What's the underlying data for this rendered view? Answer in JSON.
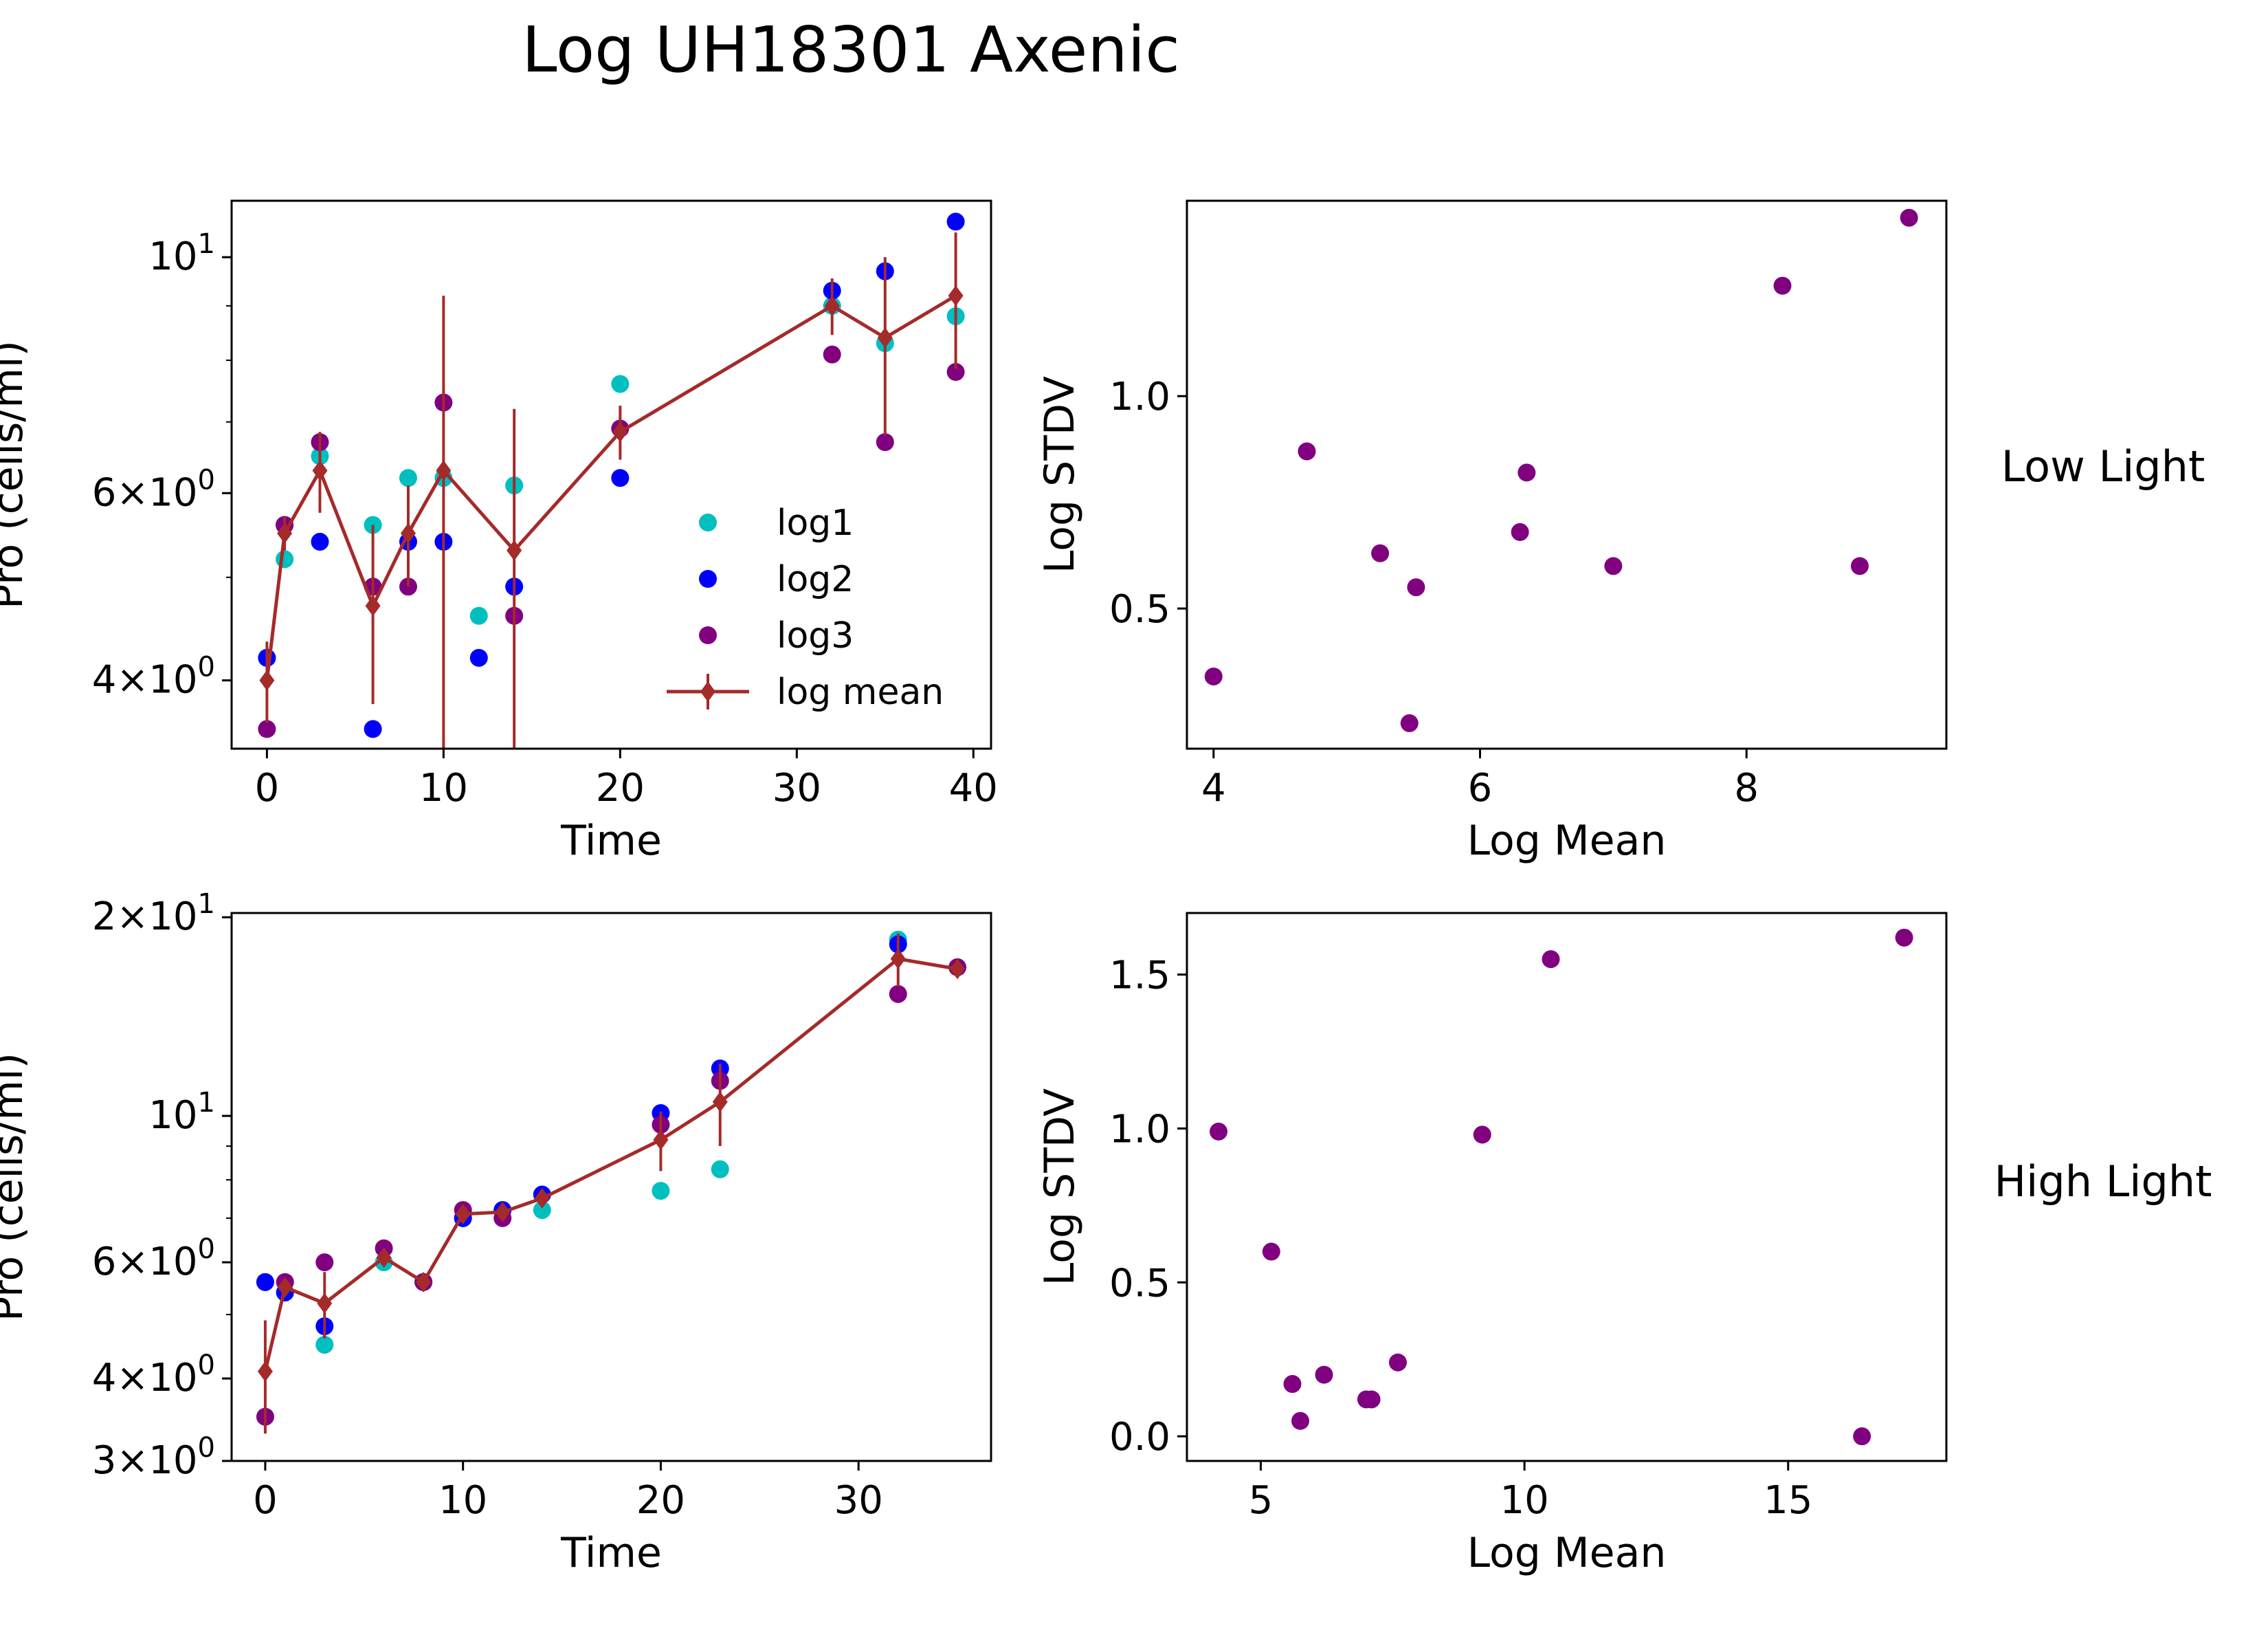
{
  "title": "Log UH18301 Axenic",
  "row_labels": [
    "Low Light",
    "High Light"
  ],
  "colors": {
    "log1": "#00bfbf",
    "log2": "#0000ff",
    "log3": "#800080",
    "mean": "#a52a2a",
    "scatter": "#800080"
  },
  "chart_data": [
    {
      "id": "low-time",
      "type": "line",
      "xlabel": "Time",
      "ylabel": "Pro (cells/ml)",
      "xlim": [
        -2,
        41
      ],
      "ylim": [
        3.45,
        11.3
      ],
      "yscale": "log",
      "xticks": [
        0,
        10,
        20,
        30,
        40
      ],
      "xticklabels": [
        "0",
        "10",
        "20",
        "30",
        "40"
      ],
      "yticks": [
        4,
        6,
        10
      ],
      "yticklabels": [
        {
          "base": "4×10",
          "exp": "0"
        },
        {
          "base": "6×10",
          "exp": "0"
        },
        {
          "base": "10",
          "exp": "1"
        }
      ],
      "legend": {
        "loc": "lower right",
        "entries": [
          "log1",
          "log2",
          " log3",
          "log mean"
        ]
      },
      "series": [
        {
          "name": "log1",
          "kind": "scatter",
          "x": [
            0,
            1,
            3,
            6,
            8,
            10,
            12,
            14,
            20,
            32,
            35,
            39
          ],
          "y": [
            4.2,
            5.2,
            6.5,
            5.6,
            6.2,
            6.2,
            4.6,
            6.1,
            7.6,
            9.0,
            8.3,
            8.8
          ]
        },
        {
          "name": "log2",
          "kind": "scatter",
          "x": [
            0,
            1,
            3,
            6,
            8,
            10,
            12,
            14,
            20,
            32,
            35,
            39
          ],
          "y": [
            4.2,
            5.6,
            5.4,
            3.6,
            5.4,
            5.4,
            4.2,
            4.9,
            6.2,
            9.3,
            9.7,
            10.8
          ]
        },
        {
          "name": " log3",
          "kind": "scatter",
          "x": [
            0,
            1,
            3,
            6,
            8,
            10,
            14,
            20,
            32,
            35,
            39
          ],
          "y": [
            3.6,
            5.6,
            6.7,
            4.9,
            4.9,
            7.3,
            4.6,
            6.9,
            8.1,
            6.7,
            7.8
          ]
        },
        {
          "name": "log mean",
          "kind": "errorbar",
          "x": [
            0,
            1,
            3,
            6,
            8,
            10,
            14,
            20,
            32,
            35,
            39
          ],
          "y": [
            4.0,
            5.5,
            6.3,
            4.7,
            5.5,
            6.3,
            5.3,
            6.85,
            9.0,
            8.4,
            9.2
          ],
          "err": [
            0.35,
            0.2,
            0.55,
            0.9,
            0.6,
            2.9,
            1.9,
            0.4,
            0.55,
            1.6,
            1.35
          ]
        }
      ]
    },
    {
      "id": "low-stdv",
      "type": "scatter",
      "xlabel": "Log Mean",
      "ylabel": "Log STDV",
      "xlim": [
        3.8,
        9.5
      ],
      "ylim": [
        0.17,
        1.46
      ],
      "xticks": [
        4,
        6,
        8
      ],
      "xticklabels": [
        "4",
        "6",
        "8"
      ],
      "yticks": [
        0.5,
        1.0
      ],
      "yticklabels": [
        "0.5",
        "1.0"
      ],
      "x": [
        4.0,
        4.7,
        5.25,
        5.47,
        5.52,
        6.3,
        6.35,
        7.0,
        8.27,
        8.85,
        9.22
      ],
      "y": [
        0.34,
        0.87,
        0.63,
        0.23,
        0.55,
        0.68,
        0.82,
        0.6,
        1.26,
        0.6,
        1.42
      ]
    },
    {
      "id": "high-time",
      "type": "line",
      "xlabel": "Time",
      "ylabel": "Pro (cells/ml)",
      "xlim": [
        -1.7,
        36.7
      ],
      "ylim": [
        3.0,
        20.3
      ],
      "yscale": "log",
      "xticks": [
        0,
        10,
        20,
        30
      ],
      "xticklabels": [
        "0",
        "10",
        "20",
        "30"
      ],
      "yticks": [
        3,
        4,
        6,
        10,
        20
      ],
      "yticklabels": [
        {
          "base": "3×10",
          "exp": "0"
        },
        {
          "base": "4×10",
          "exp": "0"
        },
        {
          "base": "6×10",
          "exp": "0"
        },
        {
          "base": "10",
          "exp": "1"
        },
        {
          "base": "2×10",
          "exp": "1"
        }
      ],
      "series": [
        {
          "name": "log1",
          "kind": "scatter",
          "x": [
            0,
            1,
            3,
            6,
            8,
            10,
            12,
            14,
            20,
            23,
            32
          ],
          "y": [
            5.6,
            5.4,
            4.5,
            6.0,
            5.6,
            7.0,
            7.2,
            7.2,
            7.7,
            8.3,
            18.5
          ]
        },
        {
          "name": "log2",
          "kind": "scatter",
          "x": [
            0,
            1,
            3,
            8,
            10,
            12,
            14,
            20,
            23,
            32
          ],
          "y": [
            5.6,
            5.4,
            4.8,
            5.6,
            7.0,
            7.2,
            7.6,
            10.1,
            11.8,
            18.2
          ]
        },
        {
          "name": " log3",
          "kind": "scatter",
          "x": [
            0,
            1,
            3,
            6,
            8,
            10,
            12,
            20,
            23,
            32,
            35
          ],
          "y": [
            3.5,
            5.6,
            6.0,
            6.3,
            5.6,
            7.2,
            7.0,
            9.7,
            11.3,
            15.3,
            16.8
          ]
        },
        {
          "name": "log mean",
          "kind": "errorbar",
          "x": [
            0,
            1,
            3,
            6,
            8,
            10,
            12,
            14,
            20,
            23,
            32,
            35
          ],
          "y": [
            4.1,
            5.5,
            5.2,
            6.1,
            5.6,
            7.1,
            7.15,
            7.5,
            9.2,
            10.5,
            17.3,
            16.7
          ],
          "err": [
            0.8,
            0.15,
            0.6,
            0.15,
            0.05,
            0.1,
            0.15,
            0.2,
            0.95,
            1.5,
            1.6,
            0.5
          ]
        }
      ]
    },
    {
      "id": "high-stdv",
      "type": "scatter",
      "xlabel": "Log Mean",
      "ylabel": "Log STDV",
      "xlim": [
        3.6,
        18.0
      ],
      "ylim": [
        -0.08,
        1.7
      ],
      "xticks": [
        5,
        10,
        15
      ],
      "xticklabels": [
        "5",
        "10",
        "15"
      ],
      "yticks": [
        0.0,
        0.5,
        1.0,
        1.5
      ],
      "yticklabels": [
        "0.0",
        "0.5",
        "1.0",
        "1.5"
      ],
      "x": [
        4.2,
        5.2,
        5.6,
        5.75,
        6.2,
        7.0,
        7.1,
        7.6,
        9.2,
        10.5,
        16.4,
        17.2
      ],
      "y": [
        0.99,
        0.6,
        0.17,
        0.05,
        0.2,
        0.12,
        0.12,
        0.24,
        0.98,
        1.55,
        0.0,
        1.62
      ]
    }
  ]
}
